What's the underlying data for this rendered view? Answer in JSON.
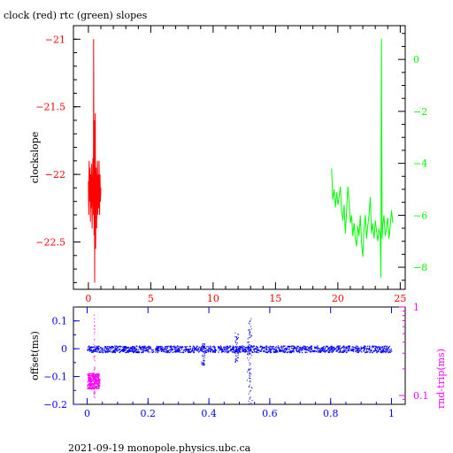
{
  "title": "clock (red) rtc (green) slopes",
  "footer": "2021-09-19 monopole.physics.ubc.ca",
  "colors": {
    "axis_black": "#000000",
    "clock_red": "#ff0000",
    "rtc_green": "#00ff00",
    "offset_blue": "#0000ff",
    "rndtrip_magenta": "#ff00ff"
  },
  "chart_data": [
    {
      "type": "line",
      "title": "clock (red) rtc (green) slopes",
      "xlabel": "",
      "ylabel": "clockslope",
      "xlim": [
        -1.2,
        25.4
      ],
      "ylim": [
        -22.85,
        -20.9
      ],
      "y2lim": [
        -8.85,
        1.3
      ],
      "xticks": [
        "0",
        "5",
        "10",
        "15",
        "20",
        "25"
      ],
      "yticks": [
        "-21",
        "-21.5",
        "-22",
        "-22.5"
      ],
      "y2ticks": [
        "0",
        "-2",
        "-4",
        "-6",
        "-8"
      ],
      "series": [
        {
          "color": "#ff0000",
          "axis": "left",
          "x": [
            0.0,
            0.03,
            0.06,
            0.1,
            0.13,
            0.16,
            0.2,
            0.23,
            0.26,
            0.3,
            0.33,
            0.36,
            0.4,
            0.42,
            0.45,
            0.48,
            0.5,
            0.52,
            0.55,
            0.58,
            0.6,
            0.63,
            0.66,
            0.7,
            0.73,
            0.76,
            0.8,
            0.83,
            0.86,
            0.9,
            0.93,
            0.96,
            1.0
          ],
          "y": [
            -22.05,
            -22.3,
            -21.9,
            -22.2,
            -21.95,
            -22.35,
            -22.0,
            -22.25,
            -21.92,
            -22.4,
            -22.1,
            -21.88,
            -22.3,
            -21.0,
            -22.45,
            -21.6,
            -22.8,
            -22.0,
            -21.55,
            -22.55,
            -22.1,
            -21.95,
            -22.4,
            -22.05,
            -21.9,
            -22.3,
            -22.0,
            -22.25,
            -21.9,
            -22.3,
            -22.0,
            -22.2,
            -22.1
          ]
        },
        {
          "color": "#00ff00",
          "axis": "right",
          "x": [
            19.5,
            19.6,
            19.7,
            19.8,
            19.9,
            20.0,
            20.1,
            20.2,
            20.3,
            20.4,
            20.5,
            20.6,
            20.7,
            20.8,
            20.9,
            21.0,
            21.1,
            21.2,
            21.3,
            21.4,
            21.5,
            21.6,
            21.7,
            21.8,
            21.9,
            22.0,
            22.1,
            22.2,
            22.3,
            22.4,
            22.5,
            22.6,
            22.7,
            22.8,
            22.9,
            23.0,
            23.1,
            23.2,
            23.3,
            23.4,
            23.45,
            23.5,
            23.55,
            23.6,
            23.7,
            23.8,
            23.9,
            24.0,
            24.1,
            24.2,
            24.3,
            24.4
          ],
          "y": [
            -4.2,
            -5.4,
            -5.0,
            -5.7,
            -5.1,
            -5.6,
            -5.3,
            -4.9,
            -5.8,
            -6.2,
            -5.6,
            -6.7,
            -5.9,
            -4.9,
            -5.5,
            -6.3,
            -6.0,
            -6.8,
            -6.3,
            -6.9,
            -7.2,
            -6.4,
            -6.8,
            -6.0,
            -7.1,
            -7.6,
            -6.5,
            -6.0,
            -6.9,
            -6.4,
            -6.0,
            -5.3,
            -6.7,
            -6.3,
            -6.9,
            -6.2,
            -6.6,
            -7.0,
            -6.5,
            -6.8,
            -8.4,
            0.8,
            -6.9,
            -6.4,
            -6.0,
            -6.8,
            -6.5,
            -6.1,
            -6.9,
            -6.4,
            -5.8,
            -6.3
          ]
        }
      ]
    },
    {
      "type": "scatter",
      "xlabel": "",
      "ylabel": "offset(ms)",
      "y2label": "rnd-trip(ms)",
      "xlim": [
        -0.045,
        1.045
      ],
      "ylim": [
        -0.2,
        0.15
      ],
      "y2lim_log": [
        0.0794,
        1.0
      ],
      "y2_scale": "log",
      "xticks": [
        "0",
        "0.2",
        "0.4",
        "0.6",
        "0.8",
        "1"
      ],
      "yticks": [
        "0.1",
        "0",
        "-0.1",
        "-0.2"
      ],
      "y2ticks": [
        "1",
        "0.1"
      ],
      "series": [
        {
          "color": "#0000ff",
          "band_center": 0.0,
          "band_halfwidth": 0.012,
          "x_range": [
            0.0,
            1.0
          ],
          "features": [
            {
              "x": 0.535,
              "y": [
                -0.2,
                0.11
              ]
            },
            {
              "x": 0.53,
              "y": [
                -0.12,
                0.07
              ]
            },
            {
              "x": 0.49,
              "y": [
                -0.05,
                0.06
              ]
            },
            {
              "x": 0.38,
              "y": [
                -0.06,
                0.02
              ]
            }
          ]
        },
        {
          "color": "#ff00ff",
          "axis": "right",
          "x_range": [
            0.0,
            0.04
          ],
          "y_range": [
            0.12,
            0.18
          ],
          "spike": {
            "x": 0.022,
            "y": [
              0.095,
              0.95
            ]
          }
        }
      ]
    }
  ]
}
